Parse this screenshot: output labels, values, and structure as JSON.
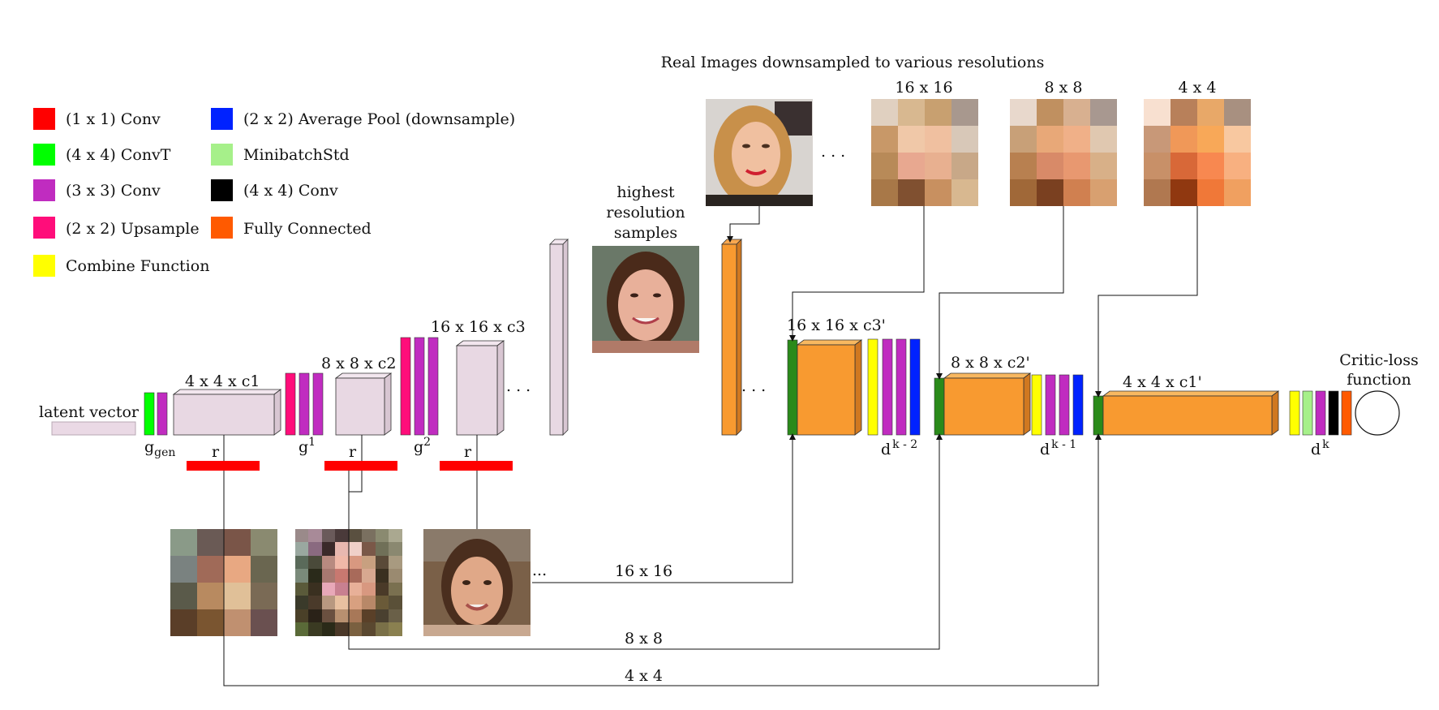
{
  "legend": {
    "items": [
      {
        "label": "(1 x 1) Conv",
        "color": "#ff0000"
      },
      {
        "label": "(4 x 4) ConvT",
        "color": "#00ff00"
      },
      {
        "label": "(3 x 3) Conv",
        "color": "#c02cc0"
      },
      {
        "label": "(2 x 2) Upsample",
        "color": "#ff0d7a"
      },
      {
        "label": "Combine Function",
        "color": "#ffff00"
      },
      {
        "label": "(2 x 2) Average Pool (downsample)",
        "color": "#0022ff"
      },
      {
        "label": "MinibatchStd",
        "color": "#a6f08a"
      },
      {
        "label": "(4 x 4) Conv",
        "color": "#000000"
      },
      {
        "label": "Fully Connected",
        "color": "#ff5a00"
      }
    ]
  },
  "generator": {
    "latent_label": "latent vector",
    "block1_label": "4 x 4 x c1",
    "block2_label": "8 x 8 x c2",
    "block3_label": "16 x 16 x c3",
    "g_gen_base": "g",
    "g_gen_sub": "gen",
    "g1_base": "g",
    "g1_sup": "1",
    "g2_base": "g",
    "g2_sup": "2",
    "r_label": "r",
    "ellipsis": ". . ."
  },
  "real_images": {
    "title": "Real Images downsampled to various resolutions",
    "res_16": "16 x 16",
    "res_8": "8 x 8",
    "res_4": "4 x 4",
    "ellipsis": ". . ."
  },
  "highest_res": {
    "line1": "highest",
    "line2": "resolution",
    "line3": "samples"
  },
  "discriminator": {
    "block3_label": "16 x 16 x c3'",
    "block2_label": "8 x 8 x c2'",
    "block1_label": "4 x 4 x c1'",
    "dk2_base": "d",
    "dk2_sup": "k - 2",
    "dk1_base": "d",
    "dk1_sup": "k - 1",
    "dk_base": "d",
    "dk_sup": "k",
    "ellipsis": ". . .",
    "critic_line1": "Critic-loss",
    "critic_line2": "function"
  },
  "connections": {
    "gen_ellipsis": "...",
    "link_16": "16 x 16",
    "link_8": "8 x 8",
    "link_4": "4 x 4"
  }
}
